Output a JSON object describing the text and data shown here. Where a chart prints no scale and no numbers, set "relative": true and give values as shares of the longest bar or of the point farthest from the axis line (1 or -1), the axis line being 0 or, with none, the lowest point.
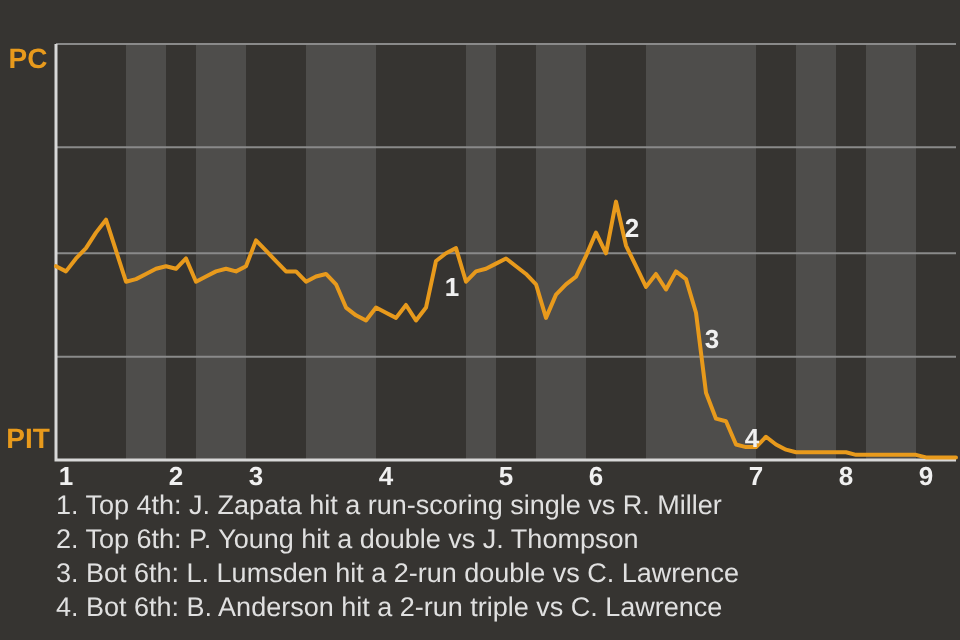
{
  "chart_data": {
    "type": "line",
    "relative": true,
    "categories": [
      null,
      "1",
      null,
      null,
      null,
      null,
      null,
      null,
      null,
      null,
      null,
      null,
      "2",
      null,
      null,
      null,
      null,
      null,
      null,
      null,
      "3",
      null,
      null,
      null,
      null,
      null,
      null,
      null,
      null,
      null,
      null,
      null,
      null,
      "4",
      null,
      null,
      null,
      null,
      null,
      null,
      null,
      null,
      null,
      null,
      null,
      "5",
      null,
      null,
      null,
      null,
      null,
      null,
      null,
      null,
      "6",
      null,
      null,
      null,
      null,
      null,
      null,
      null,
      null,
      null,
      null,
      null,
      null,
      null,
      null,
      null,
      "7",
      null,
      null,
      null,
      null,
      null,
      null,
      null,
      null,
      "8",
      null,
      null,
      null,
      null,
      null,
      null,
      null,
      "9",
      null,
      null,
      null
    ],
    "series": [
      {
        "color": "#e89a1c",
        "values": [
          0.75,
          0.73,
          0.78,
          0.82,
          0.88,
          0.93,
          0.81,
          0.69,
          0.7,
          0.72,
          0.74,
          0.75,
          0.74,
          0.78,
          0.69,
          0.71,
          0.73,
          0.74,
          0.73,
          0.75,
          0.85,
          0.81,
          0.77,
          0.73,
          0.73,
          0.69,
          0.71,
          0.72,
          0.68,
          0.59,
          0.56,
          0.54,
          0.59,
          0.57,
          0.55,
          0.6,
          0.54,
          0.59,
          0.77,
          0.8,
          0.82,
          0.69,
          0.73,
          0.74,
          0.76,
          0.78,
          0.75,
          0.72,
          0.68,
          0.55,
          0.64,
          0.68,
          0.71,
          0.79,
          0.88,
          0.8,
          1,
          0.83,
          0.75,
          0.67,
          0.72,
          0.66,
          0.73,
          0.7,
          0.57,
          0.26,
          0.16,
          0.15,
          0.06,
          0.05,
          0.05,
          0.09,
          0.06,
          0.04,
          0.03,
          0.03,
          0.03,
          0.03,
          0.03,
          0.03,
          0.02,
          0.02,
          0.02,
          0.02,
          0.02,
          0.02,
          0.02,
          0.01,
          0.01,
          0.01,
          0.01
        ]
      }
    ],
    "ref_lines": [
      {
        "axis": "y",
        "value": 0.4,
        "color": "#8a8a8a"
      },
      {
        "axis": "y",
        "value": 0.8,
        "color": "#8a8a8a"
      },
      {
        "axis": "y",
        "value": 1.21,
        "color": "#8a8a8a"
      }
    ],
    "annotations": [
      "PC",
      "PIT",
      "1",
      "2",
      "3",
      "4",
      "1. Top 4th: J. Zapata hit a run-scoring single vs R. Miller",
      "2. Top 6th: P. Young hit a double vs J. Thompson",
      "3. Bot 6th: L. Lumsden hit a 2-run double vs C. Lawrence",
      "4. Bot 6th: B. Anderson hit a 2-run triple vs C. Lawrence"
    ]
  }
}
